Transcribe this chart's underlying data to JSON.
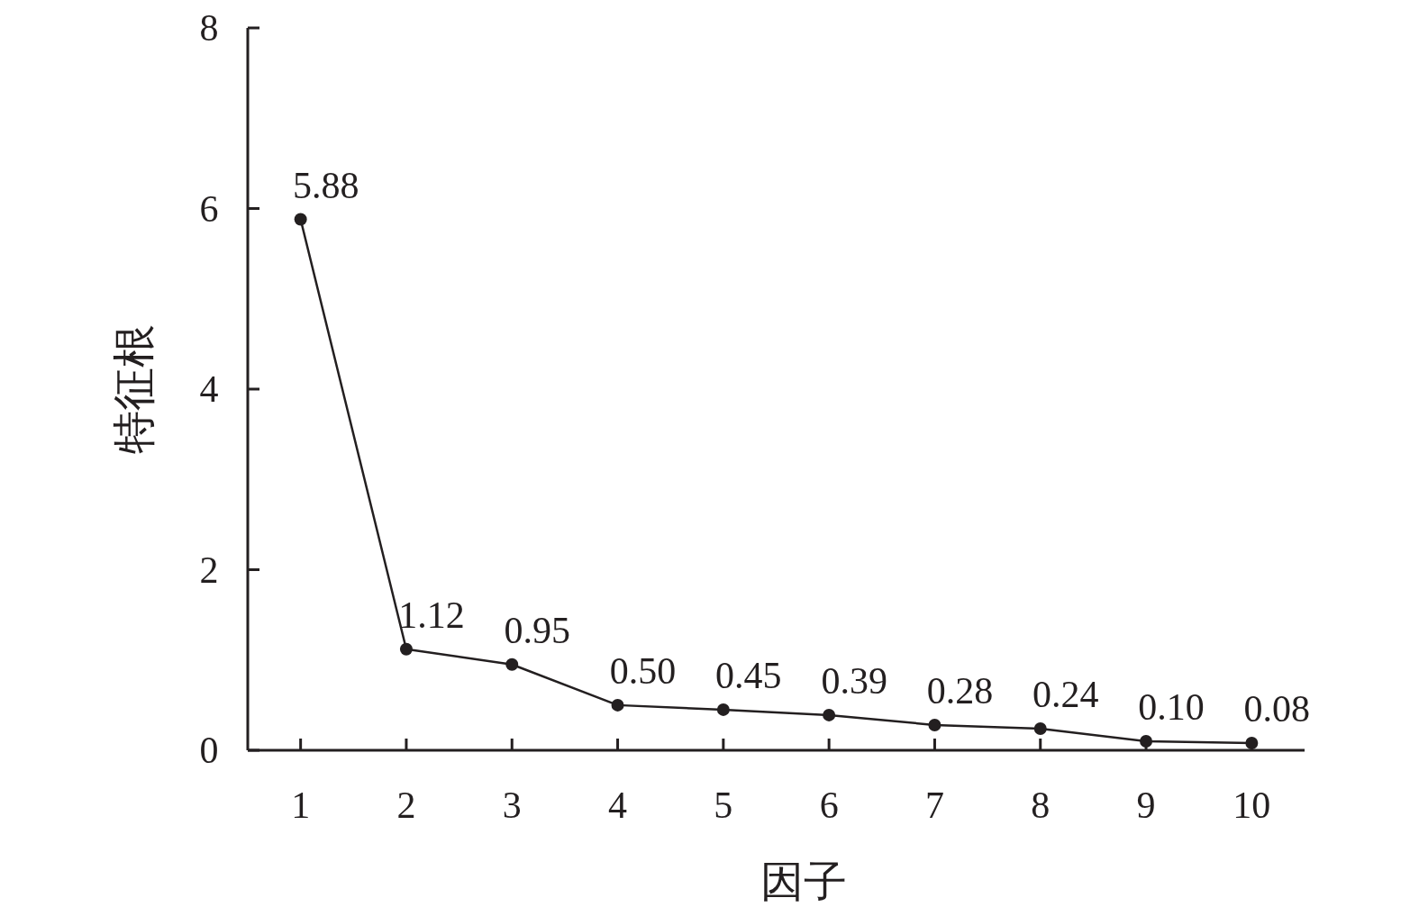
{
  "chart_data": {
    "type": "line",
    "xlabel": "因子",
    "ylabel": "特征根",
    "categories": [
      "1",
      "2",
      "3",
      "4",
      "5",
      "6",
      "7",
      "8",
      "9",
      "10"
    ],
    "values": [
      5.88,
      1.12,
      0.95,
      0.5,
      0.45,
      0.39,
      0.28,
      0.24,
      0.1,
      0.08
    ],
    "value_labels": [
      "5.88",
      "1.12",
      "0.95",
      "0.50",
      "0.45",
      "0.39",
      "0.28",
      "0.24",
      "0.10",
      "0.08"
    ],
    "color": "#231f20",
    "marker": "circle",
    "line_style": "solid",
    "ylim": [
      0,
      8
    ],
    "yticks": [
      0,
      2,
      4,
      6,
      8
    ],
    "grid": false
  }
}
